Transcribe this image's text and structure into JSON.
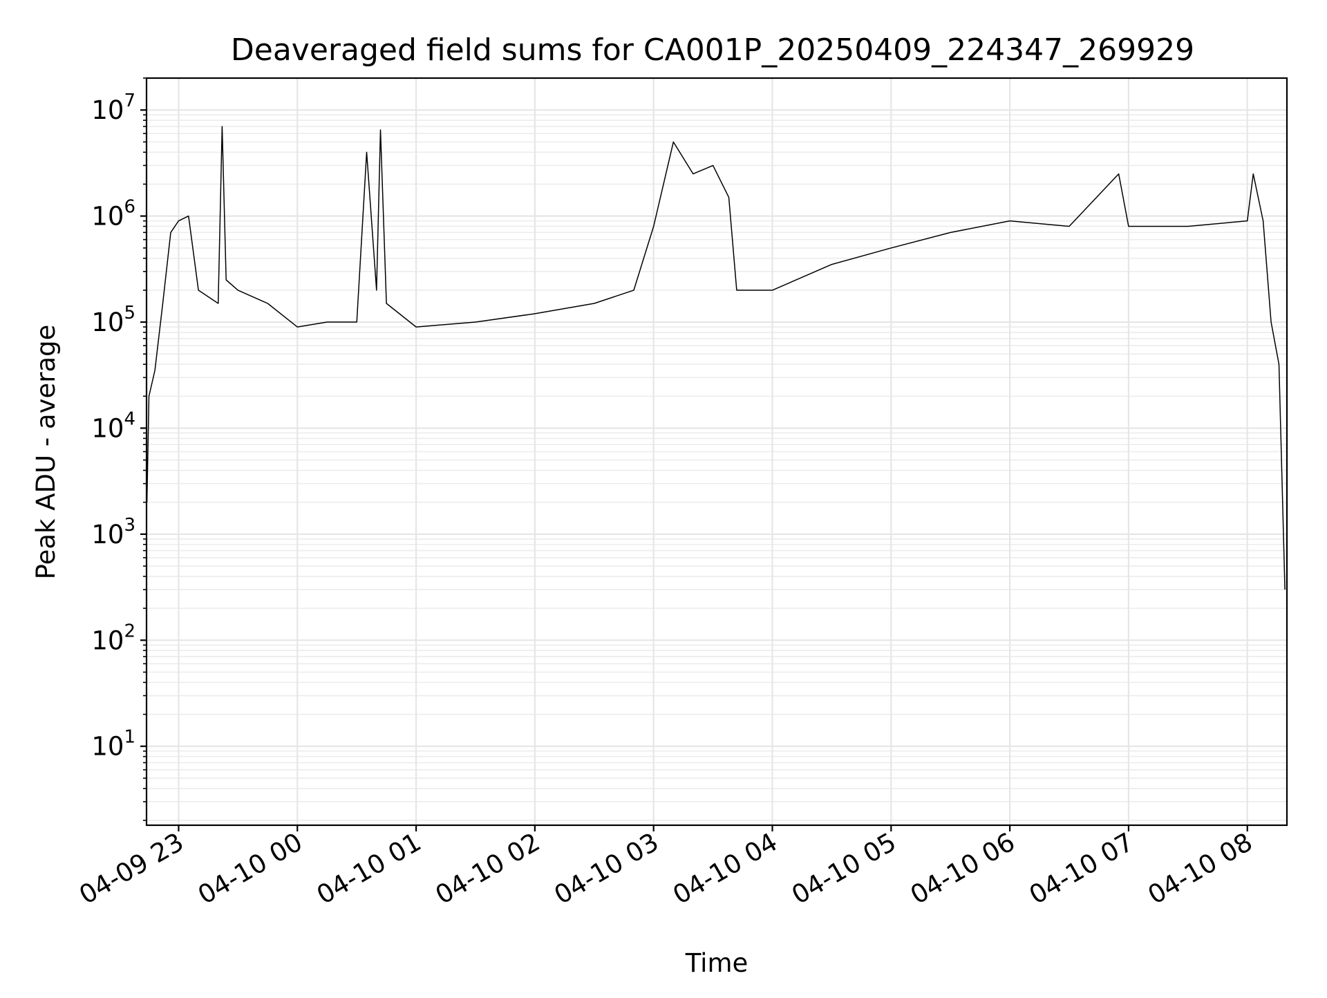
{
  "chart_data": {
    "type": "line",
    "title": "Deaveraged field sums for CA001P_20250409_224347_269929",
    "xlabel": "Time",
    "ylabel": "Peak ADU - average",
    "yscale": "log",
    "ylim": [
      1.8,
      20000000
    ],
    "xlim": [
      "2025-04-09 22:43:47",
      "2025-04-10 08:20:00"
    ],
    "grid": "on (major and minor)",
    "legend": "none",
    "line_color": "#000000",
    "x_ticks": [
      {
        "value": "2025-04-09 23:00",
        "label": "04-09 23"
      },
      {
        "value": "2025-04-10 00:00",
        "label": "04-10 00"
      },
      {
        "value": "2025-04-10 01:00",
        "label": "04-10 01"
      },
      {
        "value": "2025-04-10 02:00",
        "label": "04-10 02"
      },
      {
        "value": "2025-04-10 03:00",
        "label": "04-10 03"
      },
      {
        "value": "2025-04-10 04:00",
        "label": "04-10 04"
      },
      {
        "value": "2025-04-10 05:00",
        "label": "04-10 05"
      },
      {
        "value": "2025-04-10 06:00",
        "label": "04-10 06"
      },
      {
        "value": "2025-04-10 07:00",
        "label": "04-10 07"
      },
      {
        "value": "2025-04-10 08:00",
        "label": "04-10 08"
      }
    ],
    "y_ticks": [
      {
        "value": 10,
        "base": "10",
        "exp": "1"
      },
      {
        "value": 100,
        "base": "10",
        "exp": "2"
      },
      {
        "value": 1000,
        "base": "10",
        "exp": "3"
      },
      {
        "value": 10000,
        "base": "10",
        "exp": "4"
      },
      {
        "value": 100000,
        "base": "10",
        "exp": "5"
      },
      {
        "value": 1000000,
        "base": "10",
        "exp": "6"
      },
      {
        "value": 10000000,
        "base": "10",
        "exp": "7"
      }
    ],
    "series": [
      {
        "x": [
          "2025-04-09 22:43",
          "2025-04-09 22:44",
          "2025-04-09 22:45",
          "2025-04-09 22:48",
          "2025-04-09 22:52",
          "2025-04-09 22:56",
          "2025-04-09 23:00",
          "2025-04-09 23:05",
          "2025-04-09 23:10",
          "2025-04-09 23:20",
          "2025-04-09 23:22",
          "2025-04-09 23:24",
          "2025-04-09 23:30",
          "2025-04-09 23:45",
          "2025-04-10 00:00",
          "2025-04-10 00:15",
          "2025-04-10 00:30",
          "2025-04-10 00:35",
          "2025-04-10 00:40",
          "2025-04-10 00:42",
          "2025-04-10 00:45",
          "2025-04-10 01:00",
          "2025-04-10 01:30",
          "2025-04-10 02:00",
          "2025-04-10 02:30",
          "2025-04-10 02:50",
          "2025-04-10 03:00",
          "2025-04-10 03:10",
          "2025-04-10 03:20",
          "2025-04-10 03:30",
          "2025-04-10 03:38",
          "2025-04-10 03:42",
          "2025-04-10 04:00",
          "2025-04-10 04:30",
          "2025-04-10 05:00",
          "2025-04-10 05:30",
          "2025-04-10 06:00",
          "2025-04-10 06:30",
          "2025-04-10 06:55",
          "2025-04-10 07:00",
          "2025-04-10 07:30",
          "2025-04-10 08:00",
          "2025-04-10 08:03",
          "2025-04-10 08:08",
          "2025-04-10 08:12",
          "2025-04-10 08:16",
          "2025-04-10 08:19"
        ],
        "y": [
          50000,
          2000,
          20000,
          35000,
          150000,
          700000,
          900000,
          1000000,
          200000,
          150000,
          7000000,
          250000,
          200000,
          150000,
          90000,
          100000,
          100000,
          4000000,
          200000,
          6500000,
          150000,
          90000,
          100000,
          120000,
          150000,
          200000,
          800000,
          5000000,
          2500000,
          3000000,
          1500000,
          200000,
          200000,
          350000,
          500000,
          700000,
          900000,
          800000,
          2500000,
          800000,
          800000,
          900000,
          2500000,
          900000,
          100000,
          40000,
          300
        ]
      }
    ]
  }
}
